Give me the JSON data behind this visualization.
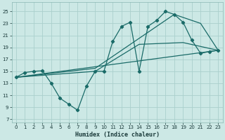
{
  "xlabel": "Humidex (Indice chaleur)",
  "bg_color": "#cce8e5",
  "grid_color": "#aad0cc",
  "line_color": "#1a6b68",
  "xlim": [
    -0.5,
    23.5
  ],
  "ylim": [
    6.5,
    26.5
  ],
  "xticks": [
    0,
    1,
    2,
    3,
    4,
    5,
    6,
    7,
    8,
    9,
    10,
    11,
    12,
    13,
    14,
    15,
    16,
    17,
    18,
    19,
    20,
    21,
    22,
    23
  ],
  "yticks": [
    7,
    9,
    11,
    13,
    15,
    17,
    19,
    21,
    23,
    25
  ],
  "curve_x": [
    0,
    1,
    2,
    3,
    4,
    5,
    6,
    7,
    8,
    9,
    10,
    11,
    12,
    13,
    14,
    15,
    16,
    17,
    18,
    19,
    20,
    21,
    22,
    23
  ],
  "curve_y": [
    14.0,
    14.8,
    15.0,
    15.1,
    13.0,
    10.5,
    9.5,
    8.5,
    12.5,
    15.0,
    15.0,
    20.0,
    22.5,
    23.2,
    15.0,
    22.5,
    23.5,
    25.0,
    24.5,
    23.2,
    20.2,
    18.0,
    18.3,
    18.5
  ],
  "line1_x": [
    0,
    23
  ],
  "line1_y": [
    14.0,
    18.5
  ],
  "line2_x": [
    0,
    9,
    14,
    19,
    23
  ],
  "line2_y": [
    14.0,
    15.0,
    19.5,
    19.8,
    18.5
  ],
  "line3_x": [
    0,
    9,
    14,
    18,
    21,
    23
  ],
  "line3_y": [
    14.0,
    15.5,
    20.5,
    24.5,
    23.0,
    18.5
  ]
}
